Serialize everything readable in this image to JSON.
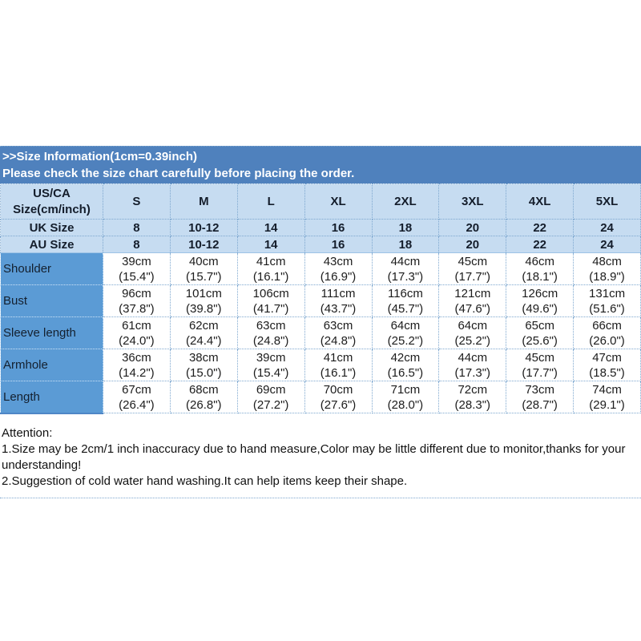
{
  "colors": {
    "banner_bg": "#4f81bd",
    "header_bg": "#c6dcf1",
    "label_col_bg": "#5b9bd5",
    "grid_dotted": "#7da7cf",
    "banner_text": "#ffffff"
  },
  "banner": {
    "line1": ">>Size Information(1cm=0.39inch)",
    "line2": "Please check the size chart carefully before placing the order."
  },
  "size_table": {
    "corner_header": "US/CA\nSize(cm/inch)",
    "size_headers": [
      "S",
      "M",
      "L",
      "XL",
      "2XL",
      "3XL",
      "4XL",
      "5XL"
    ],
    "conversion_rows": [
      {
        "label": "UK Size",
        "values": [
          "8",
          "10-12",
          "14",
          "16",
          "18",
          "20",
          "22",
          "24"
        ]
      },
      {
        "label": "AU Size",
        "values": [
          "8",
          "10-12",
          "14",
          "16",
          "18",
          "20",
          "22",
          "24"
        ]
      }
    ],
    "measurements": [
      {
        "label": "Shoulder",
        "values": [
          "39cm\n(15.4\")",
          "40cm\n(15.7\")",
          "41cm\n(16.1\")",
          "43cm\n(16.9\")",
          "44cm\n(17.3\")",
          "45cm\n(17.7\")",
          "46cm\n(18.1\")",
          "48cm\n(18.9\")"
        ]
      },
      {
        "label": "Bust",
        "values": [
          "96cm\n(37.8\")",
          "101cm\n(39.8\")",
          "106cm\n(41.7\")",
          "111cm\n(43.7\")",
          "116cm\n(45.7\")",
          "121cm\n(47.6\")",
          "126cm\n(49.6\")",
          "131cm\n(51.6\")"
        ]
      },
      {
        "label": "Sleeve length",
        "values": [
          "61cm\n(24.0\")",
          "62cm\n(24.4\")",
          "63cm\n(24.8\")",
          "63cm\n(24.8\")",
          "64cm\n(25.2\")",
          "64cm\n(25.2\")",
          "65cm\n(25.6\")",
          "66cm\n(26.0\")"
        ]
      },
      {
        "label": "Armhole",
        "values": [
          "36cm\n(14.2\")",
          "38cm\n(15.0\")",
          "39cm\n(15.4\")",
          "41cm\n(16.1\")",
          "42cm\n(16.5\")",
          "44cm\n(17.3\")",
          "45cm\n(17.7\")",
          "47cm\n(18.5\")"
        ]
      },
      {
        "label": "Length",
        "values": [
          "67cm\n(26.4\")",
          "68cm\n(26.8\")",
          "69cm\n(27.2\")",
          "70cm\n(27.6\")",
          "71cm\n(28.0\")",
          "72cm\n(28.3\")",
          "73cm\n(28.7\")",
          "74cm\n(29.1\")"
        ]
      }
    ]
  },
  "attention": {
    "heading": "Attention:",
    "note1": "1.Size may be 2cm/1 inch inaccuracy due to hand measure,Color may be little different due to monitor,thanks for your understanding!",
    "note2": "2.Suggestion of cold water hand washing.It can help items keep their shape."
  }
}
